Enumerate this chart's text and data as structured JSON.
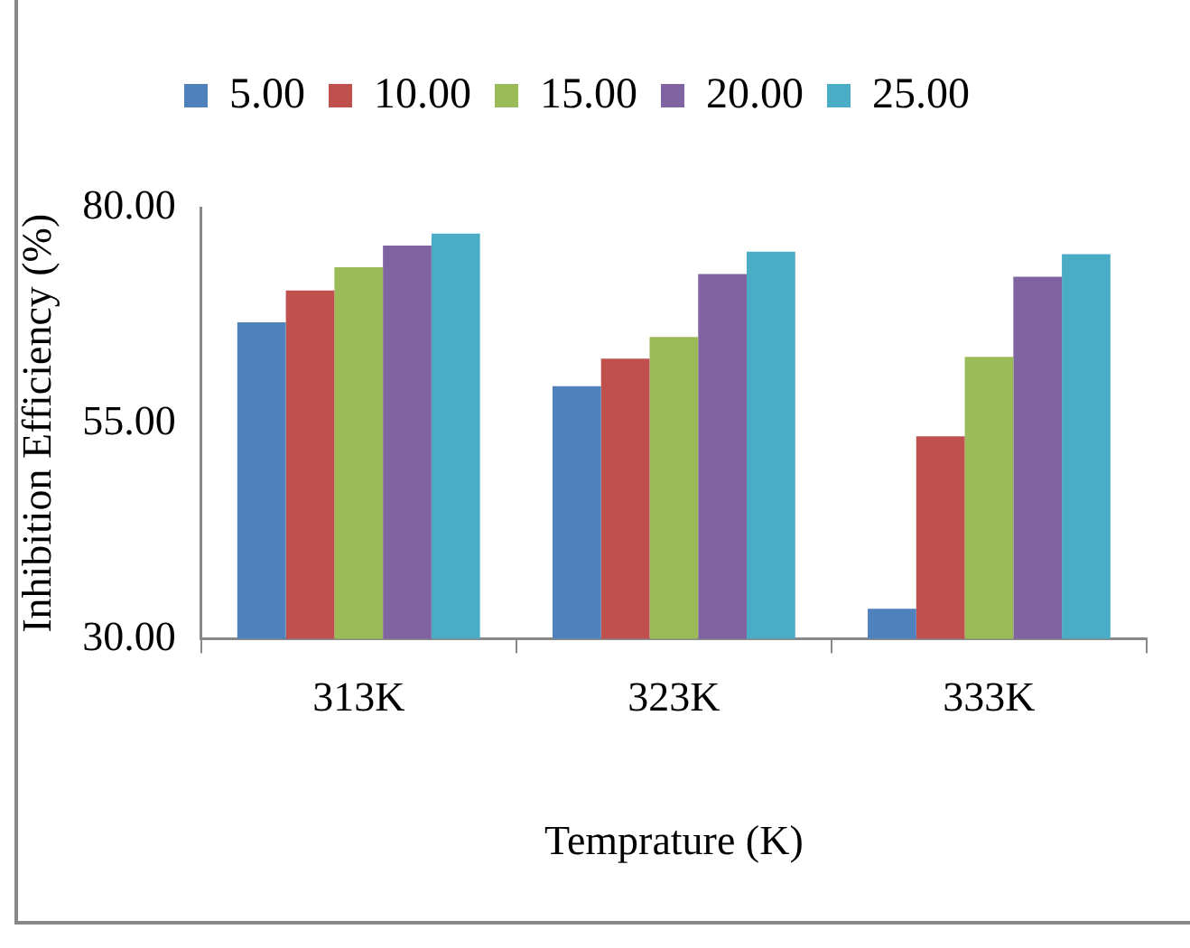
{
  "chart_data": {
    "type": "bar",
    "xlabel": "Temprature (K)",
    "ylabel": "Inhibition Efficiency (%)",
    "categories": [
      "313K",
      "323K",
      "333K"
    ],
    "series": [
      {
        "name": "5.00",
        "color": "#4f81bd",
        "values": [
          66.7,
          59.3,
          33.5
        ]
      },
      {
        "name": "10.00",
        "color": "#c0504d",
        "values": [
          70.4,
          62.5,
          53.5
        ]
      },
      {
        "name": "15.00",
        "color": "#9bbb59",
        "values": [
          73.1,
          65.0,
          62.7
        ]
      },
      {
        "name": "20.00",
        "color": "#8064a2",
        "values": [
          75.6,
          72.3,
          72.0
        ]
      },
      {
        "name": "25.00",
        "color": "#4bacc6",
        "values": [
          77.0,
          74.9,
          74.6
        ]
      }
    ],
    "ylim": [
      30,
      80
    ],
    "yticks": [
      {
        "value": 30,
        "label": "30.00"
      },
      {
        "value": 55,
        "label": "55.00"
      },
      {
        "value": 80,
        "label": "80.00"
      }
    ],
    "grid": false,
    "legend": "top"
  }
}
